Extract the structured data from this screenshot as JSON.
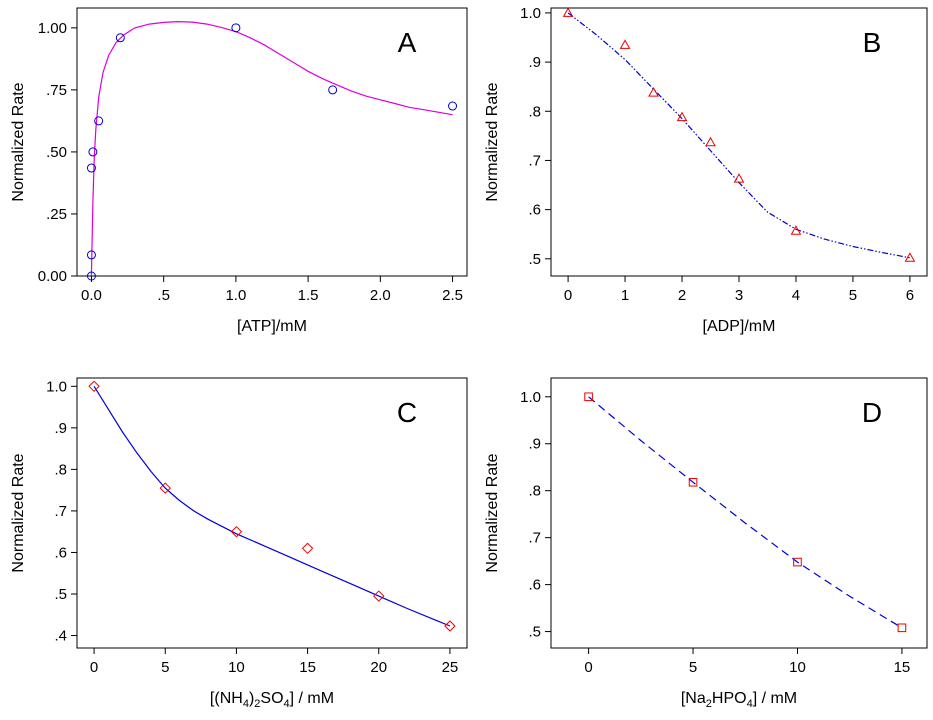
{
  "chart_data": [
    {
      "type": "scatter",
      "panel_label": "A",
      "xlabel": "[ATP]/mM",
      "ylabel": "Normalized Rate",
      "xlim": [
        -0.1,
        2.6
      ],
      "ylim": [
        0.0,
        1.08
      ],
      "xticks": [
        0.0,
        0.5,
        1.0,
        1.5,
        2.0,
        2.5
      ],
      "xtick_labels": [
        "0.0",
        ".5",
        "1.0",
        "1.5",
        "2.0",
        "2.5"
      ],
      "yticks": [
        0.0,
        0.25,
        0.5,
        0.75,
        1.0
      ],
      "ytick_labels": [
        "0.00",
        ".25",
        ".50",
        ".75",
        "1.00"
      ],
      "marker": "circle",
      "marker_color": "#0000cc",
      "fit_color": "#dd00dd",
      "fit_dash": "",
      "series": [
        {
          "x": [
            0.0,
            0.0,
            0.0,
            0.01,
            0.05,
            0.2,
            1.0,
            1.67,
            2.5
          ],
          "y": [
            0.0,
            0.085,
            0.435,
            0.5,
            0.625,
            0.96,
            1.0,
            0.75,
            0.685
          ]
        }
      ],
      "fit": {
        "x": [
          0.0,
          0.005,
          0.01,
          0.02,
          0.03,
          0.05,
          0.08,
          0.12,
          0.17,
          0.22,
          0.3,
          0.4,
          0.5,
          0.6,
          0.7,
          0.8,
          0.9,
          1.0,
          1.1,
          1.2,
          1.3,
          1.4,
          1.5,
          1.6,
          1.7,
          1.8,
          1.9,
          2.0,
          2.1,
          2.2,
          2.3,
          2.4,
          2.5
        ],
        "y": [
          0.0,
          0.16,
          0.3,
          0.48,
          0.59,
          0.72,
          0.82,
          0.89,
          0.94,
          0.97,
          1.0,
          1.015,
          1.022,
          1.025,
          1.023,
          1.015,
          1.002,
          0.985,
          0.96,
          0.93,
          0.895,
          0.86,
          0.825,
          0.795,
          0.77,
          0.745,
          0.725,
          0.71,
          0.695,
          0.68,
          0.67,
          0.66,
          0.65
        ]
      }
    },
    {
      "type": "scatter",
      "panel_label": "B",
      "xlabel": "[ADP]/mM",
      "ylabel": "Normalized Rate",
      "xlim": [
        -0.3,
        6.3
      ],
      "ylim": [
        0.465,
        1.01
      ],
      "xticks": [
        0,
        1,
        2,
        3,
        4,
        5,
        6
      ],
      "xtick_labels": [
        "0",
        "1",
        "2",
        "3",
        "4",
        "5",
        "6"
      ],
      "yticks": [
        0.5,
        0.6,
        0.7,
        0.8,
        0.9,
        1.0
      ],
      "ytick_labels": [
        ".5",
        ".6",
        ".7",
        ".8",
        ".9",
        "1.0"
      ],
      "marker": "triangle",
      "marker_color": "#ee0000",
      "fit_color": "#0000cc",
      "fit_dash": "6,2,1.5,2,1.5,2",
      "series": [
        {
          "x": [
            0,
            1,
            1.5,
            2,
            2.5,
            3,
            4,
            6
          ],
          "y": [
            1.0,
            0.935,
            0.838,
            0.788,
            0.737,
            0.663,
            0.557,
            0.502
          ]
        }
      ],
      "fit": {
        "x": [
          0,
          0.5,
          1.0,
          1.5,
          2.0,
          2.5,
          3.0,
          3.5,
          4.0,
          4.5,
          5.0,
          5.5,
          6.0
        ],
        "y": [
          1.0,
          0.955,
          0.905,
          0.845,
          0.785,
          0.72,
          0.655,
          0.595,
          0.56,
          0.54,
          0.525,
          0.513,
          0.502
        ]
      }
    },
    {
      "type": "scatter",
      "panel_label": "C",
      "xlabel": "[(NH4)2SO4] / mM",
      "ylabel": "Normalized Rate",
      "xlim": [
        -1.2,
        26.2
      ],
      "ylim": [
        0.37,
        1.02
      ],
      "xticks": [
        0,
        5,
        10,
        15,
        20,
        25
      ],
      "xtick_labels": [
        "0",
        "5",
        "10",
        "15",
        "20",
        "25"
      ],
      "yticks": [
        0.4,
        0.5,
        0.6,
        0.7,
        0.8,
        0.9,
        1.0
      ],
      "ytick_labels": [
        ".4",
        ".5",
        ".6",
        ".7",
        ".8",
        ".9",
        "1.0"
      ],
      "marker": "diamond",
      "marker_color": "#ee0000",
      "fit_color": "#0000dd",
      "fit_dash": "",
      "series": [
        {
          "x": [
            0,
            5,
            10,
            15,
            20,
            25
          ],
          "y": [
            1.0,
            0.755,
            0.65,
            0.61,
            0.495,
            0.423
          ]
        }
      ],
      "fit": {
        "x": [
          0,
          1,
          2,
          3,
          4,
          5,
          6,
          7,
          8,
          10,
          12,
          14,
          16,
          18,
          20,
          22,
          24,
          25
        ],
        "y": [
          1.0,
          0.945,
          0.89,
          0.84,
          0.795,
          0.755,
          0.725,
          0.7,
          0.68,
          0.645,
          0.615,
          0.585,
          0.555,
          0.525,
          0.495,
          0.465,
          0.437,
          0.423
        ]
      }
    },
    {
      "type": "scatter",
      "panel_label": "D",
      "xlabel": "[Na2HPO4] / mM",
      "ylabel": "Normalized Rate",
      "xlim": [
        -1.8,
        16.2
      ],
      "ylim": [
        0.465,
        1.04
      ],
      "xticks": [
        0,
        5,
        10,
        15
      ],
      "xtick_labels": [
        "0",
        "5",
        "10",
        "15"
      ],
      "yticks": [
        0.5,
        0.6,
        0.7,
        0.8,
        0.9,
        1.0
      ],
      "ytick_labels": [
        ".5",
        ".6",
        ".7",
        ".8",
        ".9",
        "1.0"
      ],
      "marker": "square",
      "marker_color": "#ee0000",
      "fit_color": "#0000dd",
      "fit_dash": "8,5",
      "series": [
        {
          "x": [
            0,
            5,
            10,
            15
          ],
          "y": [
            1.0,
            0.818,
            0.648,
            0.508
          ]
        }
      ],
      "fit": {
        "x": [
          0,
          2.5,
          5,
          7.5,
          10,
          12.5,
          15
        ],
        "y": [
          1.0,
          0.907,
          0.818,
          0.731,
          0.648,
          0.575,
          0.508
        ]
      }
    }
  ]
}
